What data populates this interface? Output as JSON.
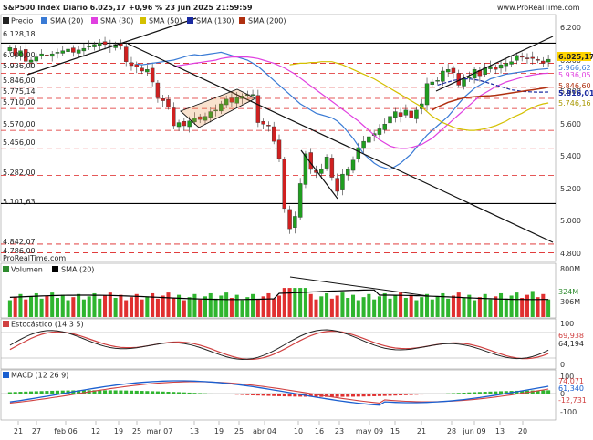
{
  "header": {
    "title": "S&P500 Index Diario 6.025,17 +0,96 % 23 jun 2025 21:59:59",
    "brand": "www.ProRealTime.com",
    "watermark": "ProRealTime.com"
  },
  "legend_price": [
    {
      "label": "Precio",
      "color": "#222222"
    },
    {
      "label": "SMA (20)",
      "color": "#3a7bd5"
    },
    {
      "label": "SMA (30)",
      "color": "#e040e0"
    },
    {
      "label": "SMA (50)",
      "color": "#d4c000"
    },
    {
      "label": "SMA (130)",
      "color": "#1a2aa0"
    },
    {
      "label": "SMA (200)",
      "color": "#b03010"
    }
  ],
  "price_level_labels": [
    "6.128,18",
    "6.000,00",
    "5.936,00",
    "5.846,00",
    "5.775,14",
    "5.710,00",
    "5.570,00",
    "5.456,00",
    "5.282,00",
    "5.101,63",
    "4.842,07",
    "4.786,00"
  ],
  "price_axis_ticks": [
    "6.200",
    "6.000",
    "5.800",
    "5.600",
    "5.400",
    "5.200",
    "5.000",
    "4.800"
  ],
  "price_value_badges": [
    {
      "text": "6.025,17",
      "bg": "#ffd400",
      "fg": "#000000"
    },
    {
      "text": "5.966,62",
      "bg": "#ffffff",
      "fg": "#3a7bd5"
    },
    {
      "text": "5.936,05",
      "bg": "#ffffff",
      "fg": "#e040e0"
    },
    {
      "text": "5.846,60",
      "bg": "#ffffff",
      "fg": "#b03010"
    },
    {
      "text": "5.816,01",
      "bg": "#ffffff",
      "fg": "#1a2aa0"
    },
    {
      "text": "5.746,16",
      "bg": "#ffffff",
      "fg": "#d4c000"
    }
  ],
  "volume_panel": {
    "legend": [
      {
        "label": "Volumen",
        "color": "#2e8b2e"
      },
      {
        "label": "SMA (20)",
        "color": "#000000"
      }
    ],
    "axis_ticks": [
      "800M",
      "306M"
    ],
    "badges": [
      "324M"
    ]
  },
  "stoch_panel": {
    "legend": [
      {
        "label": "Estocástico (14 3 5)",
        "color": "#d04040"
      }
    ],
    "axis_ticks": [
      "100",
      "0"
    ],
    "badges": [
      "69,938",
      "64,194"
    ]
  },
  "macd_panel": {
    "legend": [
      {
        "label": "MACD (12 26 9)",
        "color": "#1a5fd0"
      }
    ],
    "axis_ticks": [
      "100",
      "0",
      "-100"
    ],
    "badges": [
      "74,071",
      "61,340",
      "-12,731"
    ]
  },
  "x_axis_labels": [
    "21",
    "27",
    "feb 06",
    "12",
    "19",
    "25",
    "mar 07",
    "13",
    "19",
    "25",
    "abr 04",
    "10",
    "16",
    "23",
    "may 09",
    "15",
    "21",
    "28",
    "jun 09",
    "13",
    "20"
  ],
  "chart_data": {
    "type": "candlestick",
    "title": "S&P500 Index Diario 6.025,17 +0,96 % 23 jun 2025 21:59:59",
    "ylim": [
      4760,
      6230
    ],
    "horizontal_levels": [
      6128.18,
      6000,
      5936,
      5846,
      5775.14,
      5710,
      5570,
      5456,
      5282,
      5101.63,
      4842.07,
      4786
    ],
    "close_series": [
      6100,
      6050,
      6080,
      6012,
      6020,
      6040,
      6060,
      6050,
      6060,
      6070,
      6080,
      6090,
      6070,
      6085,
      6095,
      6110,
      6120,
      6130,
      6120,
      6105,
      6120,
      6110,
      6010,
      5985,
      5975,
      5950,
      5960,
      5880,
      5780,
      5760,
      5720,
      5600,
      5620,
      5600,
      5630,
      5650,
      5640,
      5660,
      5690,
      5700,
      5740,
      5770,
      5750,
      5780,
      5790,
      5800,
      5800,
      5620,
      5610,
      5600,
      5500,
      5390,
      5070,
      4940,
      5020,
      5230,
      5420,
      5320,
      5300,
      5320,
      5400,
      5270,
      5180,
      5290,
      5320,
      5380,
      5460,
      5500,
      5530,
      5550,
      5580,
      5610,
      5660,
      5690,
      5660,
      5700,
      5650,
      5700,
      5740,
      5870,
      5880,
      5890,
      5950,
      5960,
      5940,
      5860,
      5900,
      5910,
      5960,
      5920,
      5970,
      5980,
      5960,
      5990,
      6000,
      6010,
      6050,
      6040,
      6030,
      6030,
      6020,
      6000,
      6025
    ],
    "series": [
      {
        "name": "SMA (20)",
        "values": [
          5995,
          5990,
          5995,
          6000,
          6005,
          6010,
          6015,
          6020,
          6030,
          6040,
          6050,
          6055,
          6050,
          6055,
          6060,
          6065,
          6070,
          6060,
          6050,
          6040,
          6030,
          6020,
          6000,
          5980,
          5950,
          5920,
          5890,
          5860,
          5830,
          5800,
          5770,
          5740,
          5720,
          5700,
          5680,
          5670,
          5660,
          5650,
          5630,
          5600,
          5560,
          5520,
          5470,
          5420,
          5390,
          5360,
          5340,
          5330,
          5320,
          5340,
          5360,
          5390,
          5420,
          5460,
          5500,
          5540,
          5570,
          5600,
          5630,
          5660,
          5700,
          5740,
          5780,
          5810,
          5840,
          5860,
          5880,
          5900,
          5910,
          5920,
          5930,
          5935,
          5940,
          5945,
          5950,
          5955,
          5960,
          5963,
          5966
        ]
      },
      {
        "name": "SMA (30)",
        "values": [
          5980,
          5985,
          5990,
          5995,
          6000,
          6005,
          6010,
          6015,
          6020,
          6030,
          6035,
          6040,
          6040,
          6040,
          6040,
          6035,
          6030,
          6020,
          6010,
          6000,
          5985,
          5970,
          5950,
          5930,
          5905,
          5880,
          5855,
          5830,
          5805,
          5780,
          5755,
          5730,
          5705,
          5680,
          5655,
          5630,
          5600,
          5570,
          5540,
          5510,
          5490,
          5470,
          5460,
          5455,
          5455,
          5460,
          5470,
          5480,
          5500,
          5520,
          5550,
          5580,
          5610,
          5640,
          5670,
          5700,
          5730,
          5760,
          5790,
          5810,
          5830,
          5850,
          5865,
          5880,
          5890,
          5900,
          5910,
          5918,
          5925,
          5930,
          5934,
          5936
        ]
      },
      {
        "name": "SMA (50)",
        "values": [
          5990,
          5995,
          6000,
          6000,
          6005,
          6005,
          6010,
          6010,
          6010,
          6000,
          5990,
          5975,
          5960,
          5945,
          5930,
          5915,
          5900,
          5880,
          5860,
          5840,
          5820,
          5800,
          5780,
          5760,
          5740,
          5720,
          5690,
          5660,
          5640,
          5620,
          5605,
          5590,
          5580,
          5575,
          5570,
          5570,
          5575,
          5580,
          5590,
          5600,
          5615,
          5630,
          5650,
          5665,
          5680,
          5700,
          5715,
          5730,
          5740,
          5746
        ]
      },
      {
        "name": "SMA (130)",
        "values": [
          5860,
          5870,
          5880,
          5890,
          5895,
          5900,
          5900,
          5895,
          5890,
          5880,
          5870,
          5860,
          5850,
          5840,
          5830,
          5825,
          5820,
          5818,
          5816,
          5815,
          5815,
          5816
        ]
      },
      {
        "name": "SMA (200)",
        "values": [
          5700,
          5720,
          5735,
          5750,
          5760,
          5770,
          5778,
          5782,
          5785,
          5788,
          5790,
          5792,
          5795,
          5800,
          5805,
          5810,
          5815,
          5820,
          5825,
          5830,
          5835,
          5840,
          5846
        ]
      }
    ]
  }
}
